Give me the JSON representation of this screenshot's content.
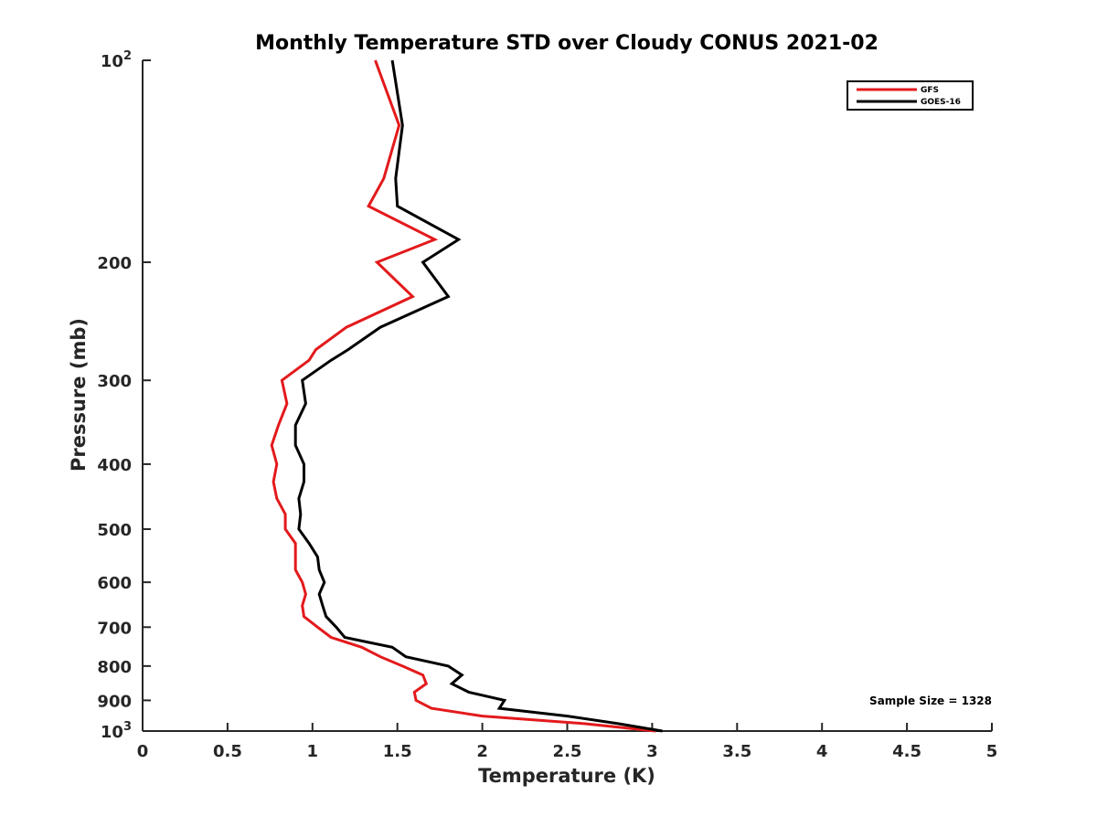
{
  "chart_data": {
    "type": "line",
    "title": "Monthly Temperature STD over Cloudy CONUS  2021-02",
    "xlabel": "Temperature (K)",
    "ylabel": "Pressure (mb)",
    "xlim": [
      0,
      5
    ],
    "ylim": [
      100,
      1000
    ],
    "y_scale": "log",
    "y_reversed": true,
    "grid": false,
    "legend_position": "top-right",
    "x_ticks": [
      {
        "value": 0,
        "label": "0"
      },
      {
        "value": 0.5,
        "label": "0.5"
      },
      {
        "value": 1,
        "label": "1"
      },
      {
        "value": 1.5,
        "label": "1.5"
      },
      {
        "value": 2,
        "label": "2"
      },
      {
        "value": 2.5,
        "label": "2.5"
      },
      {
        "value": 3,
        "label": "3"
      },
      {
        "value": 3.5,
        "label": "3.5"
      },
      {
        "value": 4,
        "label": "4"
      },
      {
        "value": 4.5,
        "label": "4.5"
      },
      {
        "value": 5,
        "label": "5"
      }
    ],
    "y_ticks": [
      {
        "value": 100,
        "base": "10",
        "exp": "2"
      },
      {
        "value": 200,
        "label": "200"
      },
      {
        "value": 300,
        "label": "300"
      },
      {
        "value": 400,
        "label": "400"
      },
      {
        "value": 500,
        "label": "500"
      },
      {
        "value": 600,
        "label": "600"
      },
      {
        "value": 700,
        "label": "700"
      },
      {
        "value": 800,
        "label": "800"
      },
      {
        "value": 900,
        "label": "900"
      },
      {
        "value": 1000,
        "base": "10",
        "exp": "3"
      }
    ],
    "series": [
      {
        "name": "GFS",
        "color": "#e31a1c",
        "points": [
          [
            1.37,
            100
          ],
          [
            1.51,
            125
          ],
          [
            1.42,
            150
          ],
          [
            1.33,
            165
          ],
          [
            1.72,
            185
          ],
          [
            1.38,
            200
          ],
          [
            1.59,
            225
          ],
          [
            1.2,
            250
          ],
          [
            1.02,
            270
          ],
          [
            0.98,
            280
          ],
          [
            0.82,
            300
          ],
          [
            0.85,
            325
          ],
          [
            0.8,
            350
          ],
          [
            0.76,
            375
          ],
          [
            0.79,
            400
          ],
          [
            0.77,
            425
          ],
          [
            0.79,
            450
          ],
          [
            0.84,
            475
          ],
          [
            0.84,
            500
          ],
          [
            0.9,
            525
          ],
          [
            0.9,
            550
          ],
          [
            0.9,
            575
          ],
          [
            0.94,
            600
          ],
          [
            0.96,
            625
          ],
          [
            0.94,
            650
          ],
          [
            0.95,
            675
          ],
          [
            1.03,
            700
          ],
          [
            1.11,
            725
          ],
          [
            1.29,
            750
          ],
          [
            1.4,
            775
          ],
          [
            1.53,
            800
          ],
          [
            1.65,
            825
          ],
          [
            1.67,
            850
          ],
          [
            1.6,
            875
          ],
          [
            1.61,
            900
          ],
          [
            1.7,
            925
          ],
          [
            2.0,
            950
          ],
          [
            2.6,
            975
          ],
          [
            3.02,
            1000
          ]
        ]
      },
      {
        "name": "GOES-16",
        "color": "#000000",
        "points": [
          [
            1.47,
            100
          ],
          [
            1.53,
            125
          ],
          [
            1.49,
            150
          ],
          [
            1.5,
            165
          ],
          [
            1.86,
            185
          ],
          [
            1.65,
            200
          ],
          [
            1.8,
            225
          ],
          [
            1.4,
            250
          ],
          [
            1.21,
            270
          ],
          [
            1.11,
            280
          ],
          [
            0.94,
            300
          ],
          [
            0.96,
            325
          ],
          [
            0.9,
            350
          ],
          [
            0.9,
            375
          ],
          [
            0.95,
            400
          ],
          [
            0.95,
            425
          ],
          [
            0.92,
            450
          ],
          [
            0.93,
            475
          ],
          [
            0.92,
            500
          ],
          [
            0.98,
            525
          ],
          [
            1.03,
            550
          ],
          [
            1.04,
            575
          ],
          [
            1.07,
            600
          ],
          [
            1.04,
            625
          ],
          [
            1.06,
            650
          ],
          [
            1.08,
            675
          ],
          [
            1.14,
            700
          ],
          [
            1.19,
            725
          ],
          [
            1.47,
            750
          ],
          [
            1.55,
            775
          ],
          [
            1.8,
            800
          ],
          [
            1.88,
            825
          ],
          [
            1.82,
            850
          ],
          [
            1.92,
            875
          ],
          [
            2.13,
            900
          ],
          [
            2.1,
            925
          ],
          [
            2.5,
            950
          ],
          [
            2.8,
            975
          ],
          [
            3.06,
            1000
          ]
        ]
      }
    ],
    "annotation": "Sample Size = 1328"
  }
}
